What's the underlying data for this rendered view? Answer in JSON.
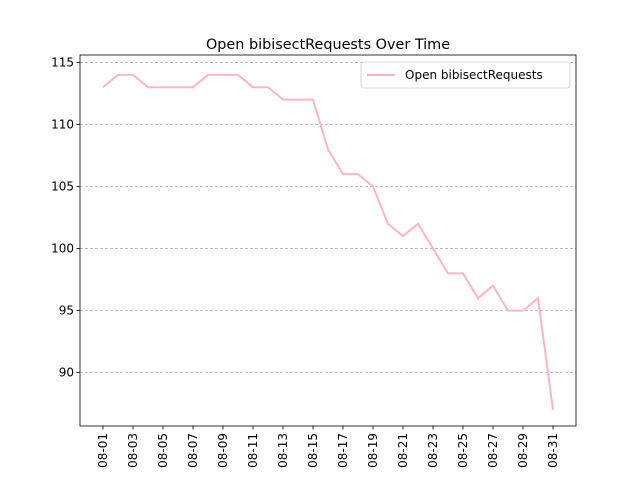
{
  "chart_data": {
    "type": "line",
    "title": "Open bibisectRequests Over Time",
    "categories": [
      "08-01",
      null,
      "08-03",
      null,
      "08-05",
      null,
      "08-07",
      null,
      "08-09",
      null,
      "08-11",
      null,
      "08-13",
      null,
      "08-15",
      null,
      "08-17",
      null,
      "08-19",
      null,
      "08-21",
      null,
      "08-23",
      null,
      "08-25",
      null,
      "08-27",
      null,
      "08-29",
      null,
      "08-31"
    ],
    "series": [
      {
        "name": "Open bibisectRequests",
        "color": "#ffb6c1",
        "values": [
          113,
          114,
          114,
          113,
          113,
          113,
          113,
          114,
          114,
          114,
          113,
          113,
          112,
          112,
          112,
          108,
          106,
          106,
          105,
          102,
          101,
          102,
          100,
          98,
          98,
          96,
          97,
          95,
          95,
          96,
          87
        ]
      }
    ],
    "ylim": [
      85.7,
      115.6
    ],
    "yticks": [
      90,
      95,
      100,
      105,
      110,
      115
    ],
    "grid": true,
    "legend": "upper right"
  }
}
